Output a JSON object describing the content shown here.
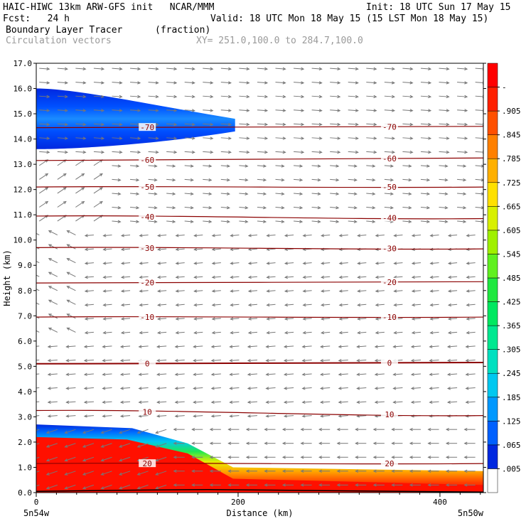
{
  "header": {
    "model_line": "HAIC-HIWC 13km ARW-GFS init   NCAR/MMM",
    "init_line": "Init: 18 UTC Sun 17 May 15",
    "fcst_label": "Fcst:   24 h",
    "valid_line": "Valid: 18 UTC Mon 18 May 15 (15 LST Mon 18 May 15)",
    "field_name": "Boundary Layer Tracer",
    "field_units": "(fraction)",
    "overlay_name": "Circulation vectors",
    "xy_range": "XY= 251.0,100.0 to 284.7,100.0"
  },
  "chart_data": {
    "type": "heatmap",
    "title": "Boundary Layer Tracer",
    "units": "(fraction)",
    "xlabel": "Distance (km)",
    "ylabel": "Height (km)",
    "xlim": [
      0,
      443
    ],
    "ylim": [
      0,
      17
    ],
    "x_ticks": [
      "0",
      "200",
      "400"
    ],
    "y_ticks": [
      "0.0",
      "1.0",
      "2.0",
      "3.0",
      "4.0",
      "5.0",
      "6.0",
      "7.0",
      "8.0",
      "9.0",
      "10.0",
      "11.0",
      "12.0",
      "13.0",
      "14.0",
      "15.0",
      "16.0",
      "17.0"
    ],
    "x_end_labels": {
      "left": "5n54w",
      "right": "5n50w"
    },
    "colorbar": {
      "labels": [
        ".005",
        ".065",
        ".125",
        ".185",
        ".245",
        ".305",
        ".365",
        ".425",
        ".485",
        ".545",
        ".605",
        ".665",
        ".725",
        ".785",
        ".845",
        ".905",
        "-"
      ],
      "colors": [
        "#ffffff",
        "#0028e0",
        "#0060ff",
        "#0098ff",
        "#00c8f0",
        "#00e0c0",
        "#00e890",
        "#00e860",
        "#20e840",
        "#60f020",
        "#a0f000",
        "#d8f000",
        "#ffe000",
        "#ffb000",
        "#ff8000",
        "#ff5000",
        "#ff2000",
        "#ff0000"
      ]
    },
    "isotherms": [
      {
        "label": "-70",
        "y_left": 14.45,
        "y_right": 14.5
      },
      {
        "label": "-60",
        "y_left": 13.15,
        "y_right": 13.25
      },
      {
        "label": "-50",
        "y_left": 12.1,
        "y_right": 12.1
      },
      {
        "label": "-40",
        "y_left": 10.95,
        "y_right": 10.85
      },
      {
        "label": "-30",
        "y_left": 9.7,
        "y_right": 9.65
      },
      {
        "label": "-20",
        "y_left": 8.3,
        "y_right": 8.35
      },
      {
        "label": "-10",
        "y_left": 6.95,
        "y_right": 6.95
      },
      {
        "label": "0",
        "y_left": 5.1,
        "y_right": 5.15
      },
      {
        "label": "10",
        "y_left": 3.25,
        "y_right": 3.05
      },
      {
        "label": "20",
        "y_left": 1.15,
        "y_right": 1.15
      }
    ],
    "tracer_upper": {
      "x_end": 197,
      "top": 16.0,
      "bottom": 13.6,
      "peak_center": 14.6
    },
    "tracer_lower": {
      "top_profile": [
        [
          0,
          2.7
        ],
        [
          95,
          2.55
        ],
        [
          150,
          1.95
        ],
        [
          195,
          1.0
        ],
        [
          443,
          0.85
        ]
      ],
      "red_top_profile": [
        [
          0,
          2.2
        ],
        [
          90,
          2.1
        ],
        [
          150,
          1.55
        ],
        [
          195,
          0.55
        ],
        [
          443,
          0.3
        ]
      ]
    },
    "wind_vectors": "Circulation vectors (gray arrows)"
  }
}
